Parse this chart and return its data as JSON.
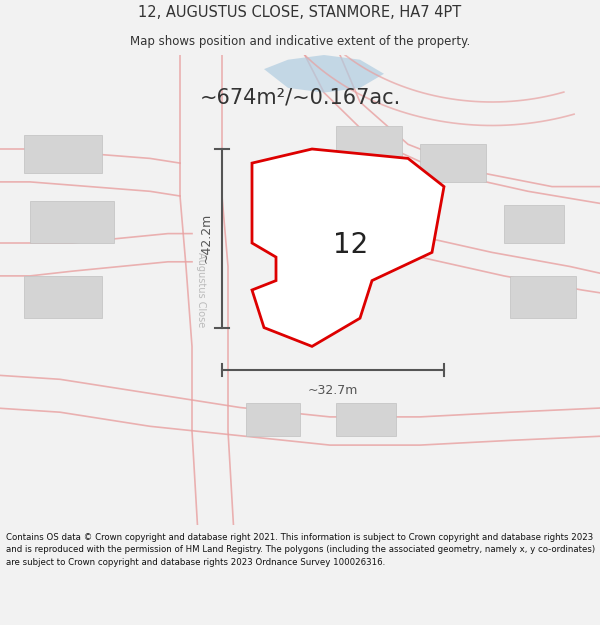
{
  "title_line1": "12, AUGUSTUS CLOSE, STANMORE, HA7 4PT",
  "title_line2": "Map shows position and indicative extent of the property.",
  "area_text": "~674m²/~0.167ac.",
  "property_number": "12",
  "dim_vertical": "~42.2m",
  "dim_horizontal": "~32.7m",
  "footer_text": "Contains OS data © Crown copyright and database right 2021. This information is subject to Crown copyright and database rights 2023 and is reproduced with the permission of HM Land Registry. The polygons (including the associated geometry, namely x, y co-ordinates) are subject to Crown copyright and database rights 2023 Ordnance Survey 100026316.",
  "bg_color": "#f2f2f2",
  "map_bg": "#ffffff",
  "road_color": "#e8a0a0",
  "road_fill": "#f9efef",
  "building_color": "#d4d4d4",
  "building_edge": "#c0c0c0",
  "property_fill": "#ffffff",
  "property_edge": "#dd0000",
  "dim_color": "#555555",
  "road_label_color": "#aaaaaa",
  "area_text_color": "#333333",
  "title_color": "#333333",
  "footer_color": "#111111",
  "blue_feature": "#b0cce0",
  "figsize": [
    6.0,
    6.25
  ],
  "dpi": 100
}
